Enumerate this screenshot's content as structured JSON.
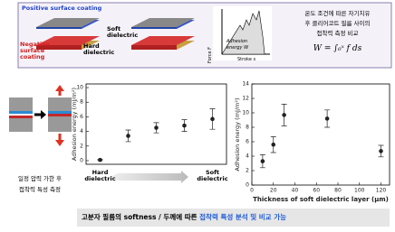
{
  "top_panel": {
    "positive_label": "Positive surface coating",
    "negative_label": "Negative surface coating",
    "hard_label": "Hard dielectric",
    "soft_label": "Soft dielectric",
    "inset": {
      "y_label": "Force F",
      "x_label": "Stroke s",
      "area_label": "Adhesion energy W"
    },
    "description": [
      "온도 조건에 따른 자기치유",
      "후 클리어코트 필름 사이의",
      "접착력 측정 비교"
    ],
    "formula": "W = ∫₀ˣ f ds"
  },
  "left_caption": [
    "일정 압력 가한 후",
    "접착력 특성 측정"
  ],
  "chart_data": [
    {
      "type": "scatter",
      "y_label": "Adhesion energy (mJ/m²)",
      "categories": [
        "Hard dielectric",
        null,
        null,
        null,
        "Soft dielectric"
      ],
      "values": [
        0.1,
        3.4,
        4.5,
        4.8,
        5.7
      ],
      "errors": [
        0.1,
        0.8,
        0.7,
        0.8,
        1.4
      ],
      "ylim": [
        -0.5,
        10.5
      ],
      "yticks": [
        0,
        2,
        4,
        6,
        8,
        10
      ],
      "color": "#222222"
    },
    {
      "type": "scatter",
      "x_label": "Thickness of soft dielectric layer (μm)",
      "y_label": "Adhesion energy (mJ/m²)",
      "x": [
        10,
        20,
        30,
        70,
        120
      ],
      "values": [
        3.3,
        5.6,
        9.7,
        9.2,
        4.7
      ],
      "errors": [
        0.9,
        1.1,
        1.5,
        1.2,
        0.8
      ],
      "xlim": [
        0,
        128
      ],
      "xticks": [
        0,
        20,
        40,
        60,
        80,
        100,
        120
      ],
      "ylim": [
        0,
        14
      ],
      "yticks": [
        0,
        2,
        4,
        6,
        8,
        10,
        12,
        14
      ],
      "color": "#222222"
    }
  ],
  "banner": {
    "text": "고분자 필름의 softness / 두께에 따른",
    "highlight": "접착력 특성 분석 및 비교 가능"
  }
}
